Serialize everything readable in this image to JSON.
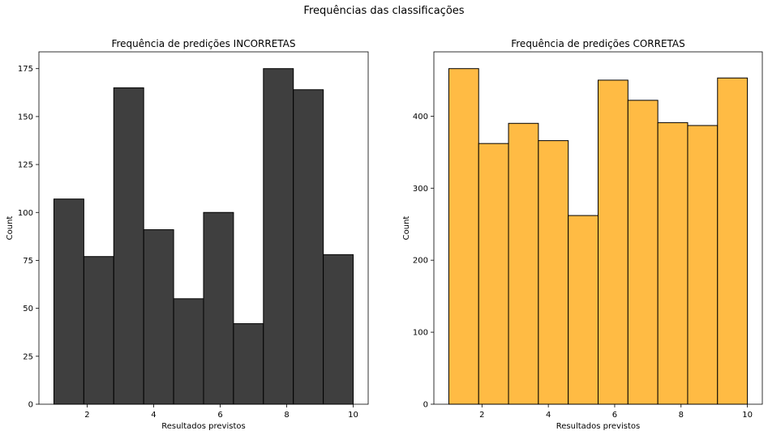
{
  "figure": {
    "suptitle": "Frequências das classificações"
  },
  "chart_data": [
    {
      "type": "bar",
      "title": "Frequência de predições INCORRETAS",
      "xlabel": "Resultados previstos",
      "ylabel": "Count",
      "bin_edges": [
        1,
        1.9,
        2.8,
        3.7,
        4.6,
        5.5,
        6.4,
        7.3,
        8.2,
        9.1,
        10
      ],
      "values": [
        107,
        77,
        165,
        91,
        55,
        100,
        42,
        175,
        164,
        78
      ],
      "xlim": [
        0.55,
        10.45
      ],
      "ylim": [
        0,
        183.75
      ],
      "xticks": [
        2,
        4,
        6,
        8,
        10
      ],
      "yticks": [
        0,
        25,
        50,
        75,
        100,
        125,
        150,
        175
      ],
      "color": "#3f3f3f",
      "edgecolor": "#000000",
      "grid": false
    },
    {
      "type": "bar",
      "title": "Frequência de predições CORRETAS",
      "xlabel": "Resultados previstos",
      "ylabel": "Count",
      "bin_edges": [
        1,
        1.9,
        2.8,
        3.7,
        4.6,
        5.5,
        6.4,
        7.3,
        8.2,
        9.1,
        10
      ],
      "values": [
        466,
        362,
        390,
        366,
        262,
        450,
        422,
        391,
        387,
        453
      ],
      "xlim": [
        0.55,
        10.45
      ],
      "ylim": [
        0,
        489.3
      ],
      "xticks": [
        2,
        4,
        6,
        8,
        10
      ],
      "yticks": [
        0,
        100,
        200,
        300,
        400
      ],
      "color": "#ffbb44",
      "edgecolor": "#000000",
      "grid": false
    }
  ]
}
